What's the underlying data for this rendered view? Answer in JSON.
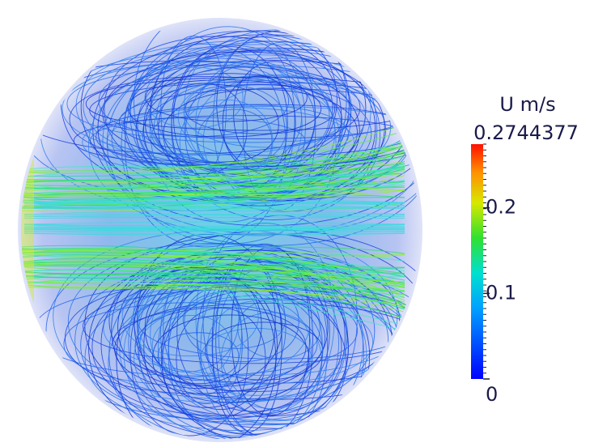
{
  "colorbar": {
    "title": "U m/s",
    "range": [
      0,
      0.2744377
    ],
    "ticks": [
      0,
      0.1,
      0.2
    ]
  }
}
